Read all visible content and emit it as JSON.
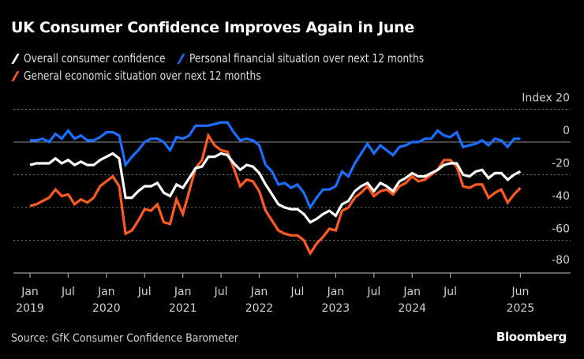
{
  "title": "UK Consumer Confidence Improves Again in June",
  "source": "Source: GfK Consumer Confidence Barometer",
  "brand": "Bloomberg",
  "colors": {
    "background": "#000000",
    "overall": "#ffffff",
    "personal": "#1a6fff",
    "general": "#ff5a1f",
    "grid": "#777777",
    "zero_line": "#8a8a8a"
  },
  "chart_data": {
    "type": "line",
    "title": "UK Consumer Confidence Improves Again in June",
    "xlabel": "",
    "ylabel": "Index",
    "ylim": [
      -80,
      20
    ],
    "yticks": [
      20,
      0,
      -20,
      -40,
      -60,
      -80
    ],
    "ytick_labels": [
      "Index  20",
      "0",
      "-20",
      "-40",
      "-60",
      "-80"
    ],
    "grid": true,
    "legend_position": "top-left",
    "x_start": "2019-01",
    "x_end": "2025-06",
    "x_frequency": "monthly",
    "xticks": [
      {
        "month_index": 0,
        "line1": "Jan",
        "line2": "2019"
      },
      {
        "month_index": 6,
        "line1": "Jul",
        "line2": ""
      },
      {
        "month_index": 12,
        "line1": "Jan",
        "line2": "2020"
      },
      {
        "month_index": 18,
        "line1": "Jul",
        "line2": ""
      },
      {
        "month_index": 24,
        "line1": "Jan",
        "line2": "2021"
      },
      {
        "month_index": 30,
        "line1": "Jul",
        "line2": ""
      },
      {
        "month_index": 36,
        "line1": "Jan",
        "line2": "2022"
      },
      {
        "month_index": 42,
        "line1": "Jul",
        "line2": ""
      },
      {
        "month_index": 48,
        "line1": "Jan",
        "line2": "2023"
      },
      {
        "month_index": 54,
        "line1": "Jul",
        "line2": ""
      },
      {
        "month_index": 60,
        "line1": "Jan",
        "line2": "2024"
      },
      {
        "month_index": 66,
        "line1": "Jul",
        "line2": ""
      },
      {
        "month_index": 77,
        "line1": "Jun",
        "line2": "2025"
      }
    ],
    "series": [
      {
        "key": "overall",
        "name": "Overall consumer confidence",
        "color": "#ffffff",
        "values": [
          -14,
          -13,
          -13,
          -13,
          -10,
          -13,
          -11,
          -14,
          -12,
          -14,
          -14,
          -11,
          -9,
          -7,
          -10,
          -34,
          -34,
          -30,
          -27,
          -27,
          -25,
          -31,
          -33,
          -26,
          -28,
          -22,
          -16,
          -15,
          -9,
          -9,
          -7,
          -8,
          -13,
          -17,
          -14,
          -15,
          -19,
          -26,
          -32,
          -38,
          -40,
          -41,
          -41,
          -44,
          -49,
          -47,
          -44,
          -42,
          -45,
          -38,
          -36,
          -30,
          -27,
          -25,
          -30,
          -25,
          -27,
          -30,
          -24,
          -22,
          -19,
          -21,
          -21,
          -19,
          -17,
          -14,
          -13,
          -13,
          -20,
          -21,
          -18,
          -17,
          -22,
          -19,
          -19,
          -23,
          -20,
          -18
        ]
      },
      {
        "key": "personal",
        "name": "Personal financial situation over next 12 months",
        "color": "#1a6fff",
        "values": [
          1,
          1,
          2,
          0,
          5,
          2,
          7,
          2,
          4,
          1,
          1,
          3,
          6,
          6,
          4,
          -14,
          -9,
          -5,
          0,
          2,
          2,
          0,
          -5,
          3,
          2,
          4,
          10,
          10,
          10,
          11,
          12,
          12,
          6,
          1,
          2,
          1,
          -2,
          -14,
          -18,
          -26,
          -25,
          -28,
          -26,
          -31,
          -40,
          -34,
          -29,
          -29,
          -27,
          -18,
          -21,
          -13,
          -7,
          -1,
          -7,
          -2,
          -5,
          -8,
          -3,
          -2,
          0,
          0,
          2,
          2,
          7,
          4,
          3,
          6,
          -3,
          -2,
          -1,
          1,
          -2,
          2,
          1,
          -3,
          2,
          2
        ]
      },
      {
        "key": "general",
        "name": "General economic situation over next 12 months",
        "color": "#ff5a1f",
        "values": [
          -39,
          -38,
          -36,
          -34,
          -29,
          -33,
          -32,
          -38,
          -35,
          -37,
          -34,
          -27,
          -24,
          -21,
          -27,
          -56,
          -54,
          -48,
          -41,
          -42,
          -38,
          -49,
          -50,
          -35,
          -44,
          -30,
          -16,
          -11,
          4,
          -2,
          -5,
          -6,
          -16,
          -27,
          -23,
          -24,
          -30,
          -42,
          -48,
          -54,
          -56,
          -57,
          -57,
          -60,
          -68,
          -62,
          -58,
          -53,
          -54,
          -42,
          -40,
          -34,
          -31,
          -27,
          -33,
          -30,
          -29,
          -32,
          -27,
          -25,
          -21,
          -24,
          -23,
          -20,
          -17,
          -11,
          -11,
          -15,
          -27,
          -28,
          -26,
          -26,
          -34,
          -31,
          -29,
          -37,
          -32,
          -28
        ]
      }
    ]
  }
}
